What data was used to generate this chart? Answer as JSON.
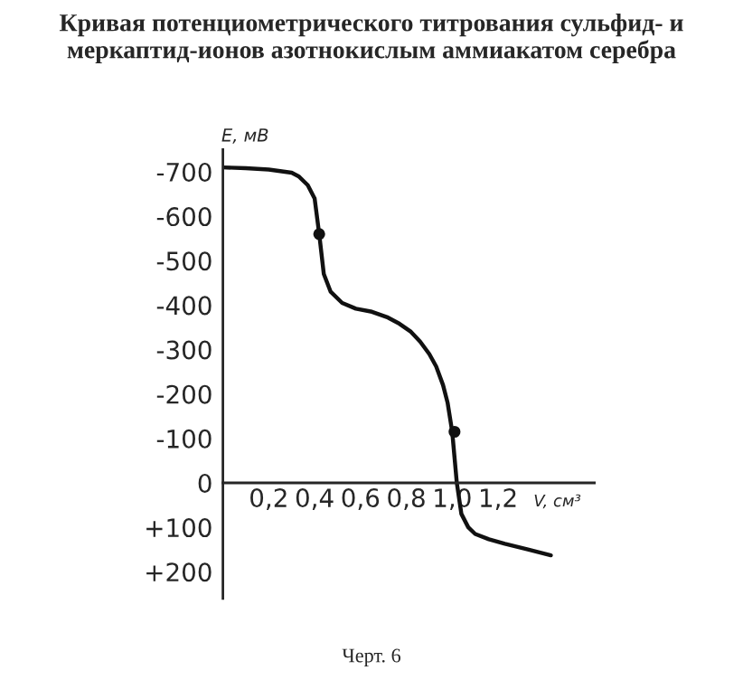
{
  "chart_data": {
    "type": "line",
    "title": "Кривая потенциометрического титрования сульфид- и меркаптид-ионов азотнокислым аммиакатом серебра",
    "xlabel": "V, см³",
    "ylabel": "E, мВ",
    "annotations": [
      "Черт. 6"
    ],
    "series": [
      {
        "color": "#111111",
        "x": [
          0,
          0.1,
          0.2,
          0.3,
          0.33,
          0.37,
          0.4,
          0.42,
          0.44,
          0.47,
          0.52,
          0.58,
          0.65,
          0.72,
          0.77,
          0.82,
          0.86,
          0.9,
          0.93,
          0.96,
          0.98,
          1.0,
          1.02,
          1.04,
          1.07,
          1.1,
          1.16,
          1.23,
          1.33,
          1.43
        ],
        "values": [
          -710,
          -708,
          -705,
          -698,
          -690,
          -670,
          -640,
          -560,
          -470,
          -430,
          -405,
          -392,
          -385,
          -372,
          -358,
          -340,
          -318,
          -290,
          -262,
          -220,
          -180,
          -115,
          0,
          70,
          100,
          115,
          127,
          137,
          150,
          163
        ]
      },
      {
        "type": "scatter",
        "color": "#111111",
        "x": [
          0.42,
          1.01
        ],
        "values": [
          -560,
          -115
        ]
      }
    ],
    "xlim": [
      0,
      1.62
    ],
    "ylim": [
      260,
      -750
    ],
    "xticks": [
      {
        "value": 0.2,
        "label": "0,2"
      },
      {
        "value": 0.4,
        "label": "0,4"
      },
      {
        "value": 0.6,
        "label": "0,6"
      },
      {
        "value": 0.8,
        "label": "0,8"
      },
      {
        "value": 1.0,
        "label": "1,0"
      },
      {
        "value": 1.2,
        "label": "1,2"
      }
    ],
    "yticks": [
      -700,
      -600,
      -500,
      -400,
      -300,
      -200,
      -100,
      0,
      {
        "value": 100,
        "label": "+100"
      },
      {
        "value": 200,
        "label": "+200"
      }
    ],
    "grid": false,
    "line_style": "solid"
  }
}
